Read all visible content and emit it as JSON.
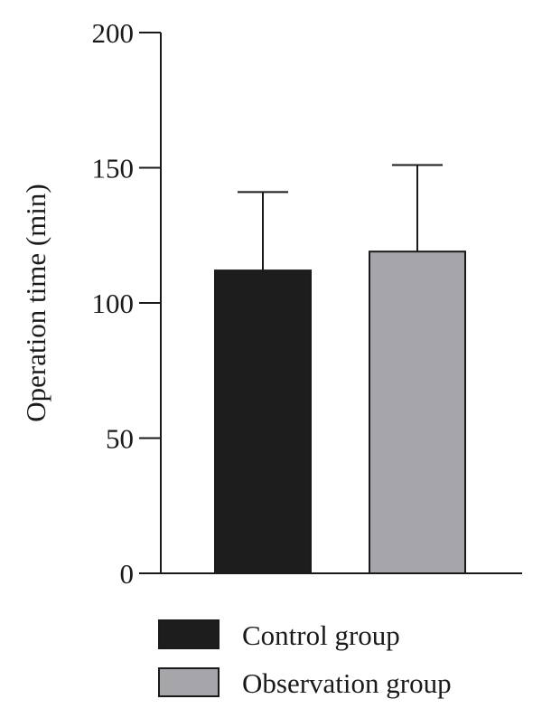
{
  "chart_data": {
    "type": "bar",
    "title": "",
    "xlabel": "",
    "ylabel": "Operation time (min)",
    "ylim": [
      0,
      200
    ],
    "yticks": [
      0,
      50,
      100,
      150,
      200
    ],
    "grid": false,
    "legend_position": "bottom",
    "series": [
      {
        "name": "Control group",
        "value": 112,
        "error": 29,
        "color": "#1d1d1d"
      },
      {
        "name": "Observation group",
        "value": 119,
        "error": 32,
        "color": "#a6a6aa"
      }
    ]
  }
}
